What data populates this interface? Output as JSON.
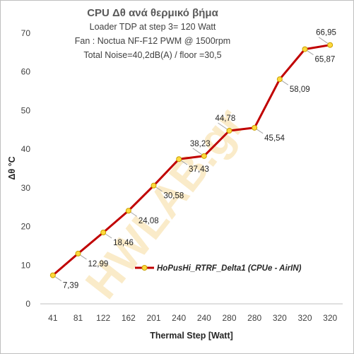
{
  "chart_data": {
    "type": "line",
    "title": "CPU  Δθ   ανά θερμικό βήμα",
    "subtitle_lines": [
      "Loader TDP at step 3= 120 Watt",
      "Fan : Noctua NF-F12 PWM @ 1500rpm",
      "Total Noise=40,2dB(A) / floor =30,5"
    ],
    "xlabel": "Thermal Step [Watt]",
    "ylabel": "Δθ °C",
    "categories": [
      "41",
      "81",
      "122",
      "162",
      "201",
      "240",
      "240",
      "280",
      "280",
      "320",
      "320",
      "320"
    ],
    "ylim": [
      0,
      70
    ],
    "yticks": [
      0,
      10,
      20,
      30,
      40,
      50,
      60,
      70
    ],
    "grid": false,
    "legend_position": "lower-right",
    "watermark": "HWLAB.gr",
    "series": [
      {
        "name": "HoPusHi_RTRF_Delta1 (CPUe - AirIN)",
        "values": [
          7.39,
          12.99,
          18.46,
          24.08,
          30.58,
          37.43,
          38.23,
          44.78,
          45.54,
          58.09,
          65.87,
          66.95
        ],
        "labels": [
          "7,39",
          "12,99",
          "18,46",
          "24,08",
          "30,58",
          "37,43",
          "38,23",
          "44,78",
          "45,54",
          "58,09",
          "65,87",
          "66,95"
        ],
        "color": "#c00000",
        "marker_color": "#ffd93d"
      }
    ]
  }
}
